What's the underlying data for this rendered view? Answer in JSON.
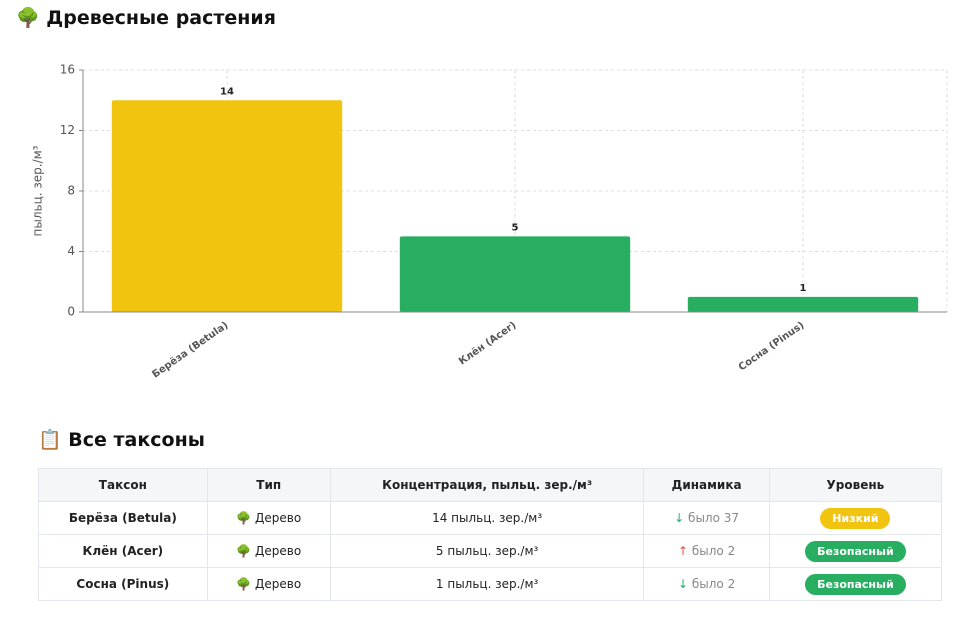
{
  "header": {
    "icon": "🌳"
  },
  "chart_data": {
    "type": "bar",
    "title": "Древесные растения",
    "y_label": "пыльц. зер./м³",
    "categories": [
      "Берёза (Betula)",
      "Клён (Acer)",
      "Сосна (Pinus)"
    ],
    "values": [
      14,
      5,
      1
    ],
    "colors": [
      "#f1c40f",
      "#27ae60",
      "#27ae60"
    ],
    "ylim": [
      0,
      16
    ],
    "yticks": [
      0,
      4,
      8,
      12,
      16
    ],
    "grid": true
  },
  "section": {
    "icon": "📋",
    "title": "Все таксоны"
  },
  "table": {
    "columns": [
      "Таксон",
      "Тип",
      "Концентрация, пыльц. зер./м³",
      "Динамика",
      "Уровень"
    ],
    "rows": [
      {
        "taxon": "Берёза (Betula)",
        "type_icon": "🌳",
        "type": "Дерево",
        "concentration": "14 пыльц. зер./м³",
        "arrow": "↓",
        "arrow_color": "#27ae60",
        "trend": "было 37",
        "level": "Низкий",
        "level_color": "#f1c40f"
      },
      {
        "taxon": "Клён (Acer)",
        "type_icon": "🌳",
        "type": "Дерево",
        "concentration": "5 пыльц. зер./м³",
        "arrow": "↑",
        "arrow_color": "#e74c3c",
        "trend": "было 2",
        "level": "Безопасный",
        "level_color": "#27ae60"
      },
      {
        "taxon": "Сосна (Pinus)",
        "type_icon": "🌳",
        "type": "Дерево",
        "concentration": "1 пыльц. зер./м³",
        "arrow": "↓",
        "arrow_color": "#27ae60",
        "trend": "было 2",
        "level": "Безопасный",
        "level_color": "#27ae60"
      }
    ]
  }
}
